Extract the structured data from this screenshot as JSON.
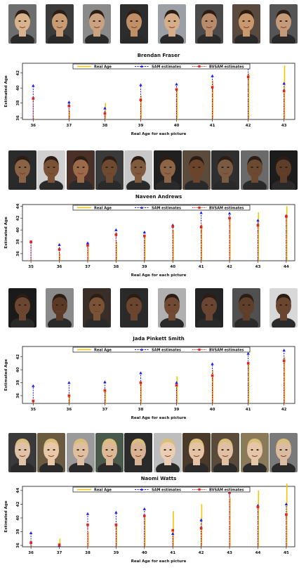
{
  "colors": {
    "real": "#f5c400",
    "sam": "#1a1aff",
    "bvsam": "#e0241b",
    "axis": "#111111"
  },
  "legend": [
    "Real Age",
    "SAM estimates",
    "BVSAM estimates"
  ],
  "chart_data": [
    {
      "type": "line",
      "title": "Brendan Fraser",
      "xlabel": "Real Age for each picture",
      "ylabel": "Estimated Age",
      "x": [
        36,
        37,
        38,
        39,
        40,
        41,
        42,
        43
      ],
      "ylim": [
        35.8,
        43.3
      ],
      "yticks": [
        36,
        38,
        40,
        42
      ],
      "legend_position": "top",
      "series": [
        {
          "name": "Real Age",
          "values": [
            36,
            37,
            38,
            39,
            40,
            41,
            42,
            43
          ]
        },
        {
          "name": "SAM estimates",
          "values": [
            40.3,
            38.1,
            37.3,
            40.4,
            40.5,
            41.6,
            42.7,
            40.6
          ]
        },
        {
          "name": "BVSAM estimates",
          "values": [
            38.6,
            37.6,
            36.6,
            38.4,
            39.8,
            40.1,
            41.5,
            39.6
          ]
        }
      ]
    },
    {
      "type": "line",
      "title": "Naveen Andrews",
      "xlabel": "Real Age for each picture",
      "ylabel": "Estimated Age",
      "x": [
        35,
        36,
        37,
        38,
        39,
        40,
        41,
        42,
        43,
        44
      ],
      "ylim": [
        34.8,
        44.3
      ],
      "yticks": [
        36,
        38,
        40,
        42,
        44
      ],
      "legend_position": "top",
      "series": [
        {
          "name": "Real Age",
          "values": [
            35,
            36,
            37,
            38,
            39,
            40,
            41,
            42,
            43,
            44
          ]
        },
        {
          "name": "SAM estimates",
          "values": [
            38.0,
            37.5,
            37.8,
            40.0,
            39.6,
            40.8,
            42.9,
            42.8,
            41.6,
            42.4
          ]
        },
        {
          "name": "BVSAM estimates",
          "values": [
            38.0,
            36.7,
            37.4,
            39.2,
            39.0,
            40.6,
            40.5,
            42.0,
            40.8,
            42.3
          ]
        }
      ]
    },
    {
      "type": "line",
      "title": "Jada Pinkett Smith",
      "xlabel": "Real Age for each picture",
      "ylabel": "Estimated Age",
      "x": [
        35,
        36,
        37,
        38,
        39,
        40,
        41,
        42
      ],
      "ylim": [
        34.8,
        43.6
      ],
      "yticks": [
        36,
        38,
        40,
        42
      ],
      "legend_position": "top",
      "series": [
        {
          "name": "Real Age",
          "values": [
            35,
            36,
            37,
            38,
            39,
            40,
            41,
            42
          ]
        },
        {
          "name": "SAM estimates",
          "values": [
            37.5,
            38.0,
            38.1,
            39.5,
            38.0,
            40.9,
            42.5,
            43.0
          ]
        },
        {
          "name": "BVSAM estimates",
          "values": [
            35.2,
            36.0,
            36.8,
            38.0,
            37.6,
            39.1,
            41.0,
            41.4
          ]
        }
      ]
    },
    {
      "type": "line",
      "title": "Naomi Watts",
      "xlabel": "Real Age for each picture",
      "ylabel": "Estimated Age",
      "x": [
        36,
        37,
        38,
        39,
        40,
        41,
        42,
        43,
        44,
        45
      ],
      "ylim": [
        35.8,
        44.6
      ],
      "yticks": [
        36,
        38,
        40,
        42,
        44
      ],
      "legend_position": "top",
      "series": [
        {
          "name": "Real Age",
          "values": [
            36,
            37,
            38,
            39,
            40,
            41,
            42,
            43,
            44,
            45
          ]
        },
        {
          "name": "SAM estimates",
          "values": [
            37.8,
            36.0,
            40.6,
            40.8,
            41.3,
            37.7,
            39.7,
            43.7,
            41.8,
            42.0
          ]
        },
        {
          "name": "BVSAM estimates",
          "values": [
            36.4,
            36.1,
            39.0,
            39.0,
            40.3,
            38.2,
            38.5,
            43.7,
            41.6,
            40.5
          ]
        }
      ]
    }
  ],
  "faces": [
    {
      "count": 8,
      "palette": [
        "#d9b38c",
        "#c89b73",
        "#caa27f",
        "#bf9068",
        "#d6ad89",
        "#b88c6a",
        "#c9986f",
        "#c59a78"
      ],
      "bg": [
        "#6e6e6e",
        "#3b3b3b",
        "#8a8a8a",
        "#2d2d2d",
        "#9aa0a6",
        "#4a4a4a",
        "#5a4a3e",
        "#555555"
      ]
    },
    {
      "count": 10,
      "palette": [
        "#8a6245",
        "#7a5236",
        "#9b6a4a",
        "#6e4a30",
        "#805a3c",
        "#8c6446",
        "#6a452c",
        "#7a5a40",
        "#6c4a32",
        "#5e3e28"
      ],
      "bg": [
        "#2b2b2b",
        "#d0d0d0",
        "#4a3026",
        "#3a3a3a",
        "#c8c8c8",
        "#202020",
        "#5b4b3b",
        "#2f2f2f",
        "#6a6a6a",
        "#1c1c1c"
      ]
    },
    {
      "count": 8,
      "palette": [
        "#6b4630",
        "#5a3a26",
        "#7a5236",
        "#6a4530",
        "#704a33",
        "#6a4632",
        "#5e3f2a",
        "#6a4630"
      ],
      "bg": [
        "#1a1a1a",
        "#8a8a8a",
        "#3a2f28",
        "#2a2a2a",
        "#b0b0b0",
        "#242424",
        "#505050",
        "#d8d8d8"
      ]
    },
    {
      "count": 10,
      "palette": [
        "#e2c2a6",
        "#e8c8a8",
        "#e0bea0",
        "#dcb896",
        "#d8b292",
        "#eacdb2",
        "#e4c4a4",
        "#e0bfa3",
        "#e6c6a8",
        "#dcbca0"
      ],
      "bg": [
        "#3a3a3a",
        "#6a5a40",
        "#9a9a9a",
        "#4a5a4a",
        "#2a2a2a",
        "#bdbdbd",
        "#4a3a2a",
        "#5a4a3a",
        "#8a7a5a",
        "#7a7a7a"
      ]
    }
  ]
}
